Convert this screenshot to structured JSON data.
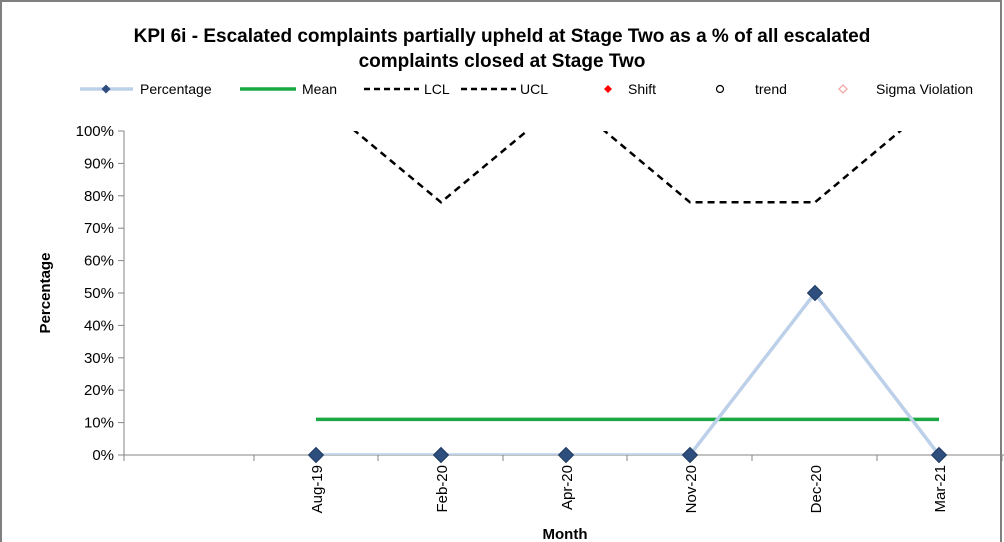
{
  "chart_data": {
    "type": "line",
    "title_line1": "KPI 6i - Escalated complaints partially upheld at Stage Two as a % of all escalated",
    "title_line2": "complaints closed at Stage Two",
    "xlabel": "Month",
    "ylabel": "Percentage",
    "ylim": [
      0,
      100
    ],
    "y_ticks": [
      "0%",
      "10%",
      "20%",
      "30%",
      "40%",
      "50%",
      "60%",
      "70%",
      "80%",
      "90%",
      "100%"
    ],
    "categories": [
      "Aug-19",
      "Feb-20",
      "Apr-20",
      "Nov-20",
      "Dec-20",
      "Mar-21"
    ],
    "legend": [
      "Percentage",
      "Mean",
      "LCL",
      "UCL",
      "Shift",
      "trend",
      "Sigma Violation"
    ],
    "series": [
      {
        "name": "Percentage",
        "values": [
          0,
          0,
          0,
          0,
          50,
          0
        ],
        "color": "#bdd0e9",
        "marker_color": "#2e4e7e"
      },
      {
        "name": "Mean",
        "values": [
          11,
          11,
          11,
          11,
          11,
          11
        ],
        "color": "#1aa843"
      },
      {
        "name": "UCL",
        "values": [
          110,
          78,
          110,
          78,
          78,
          110
        ],
        "color": "#000000"
      }
    ],
    "legend_colors": {
      "shift": "#ff0000",
      "sigma": "#f4a0a0",
      "trend": "#000000"
    },
    "grid": false
  }
}
